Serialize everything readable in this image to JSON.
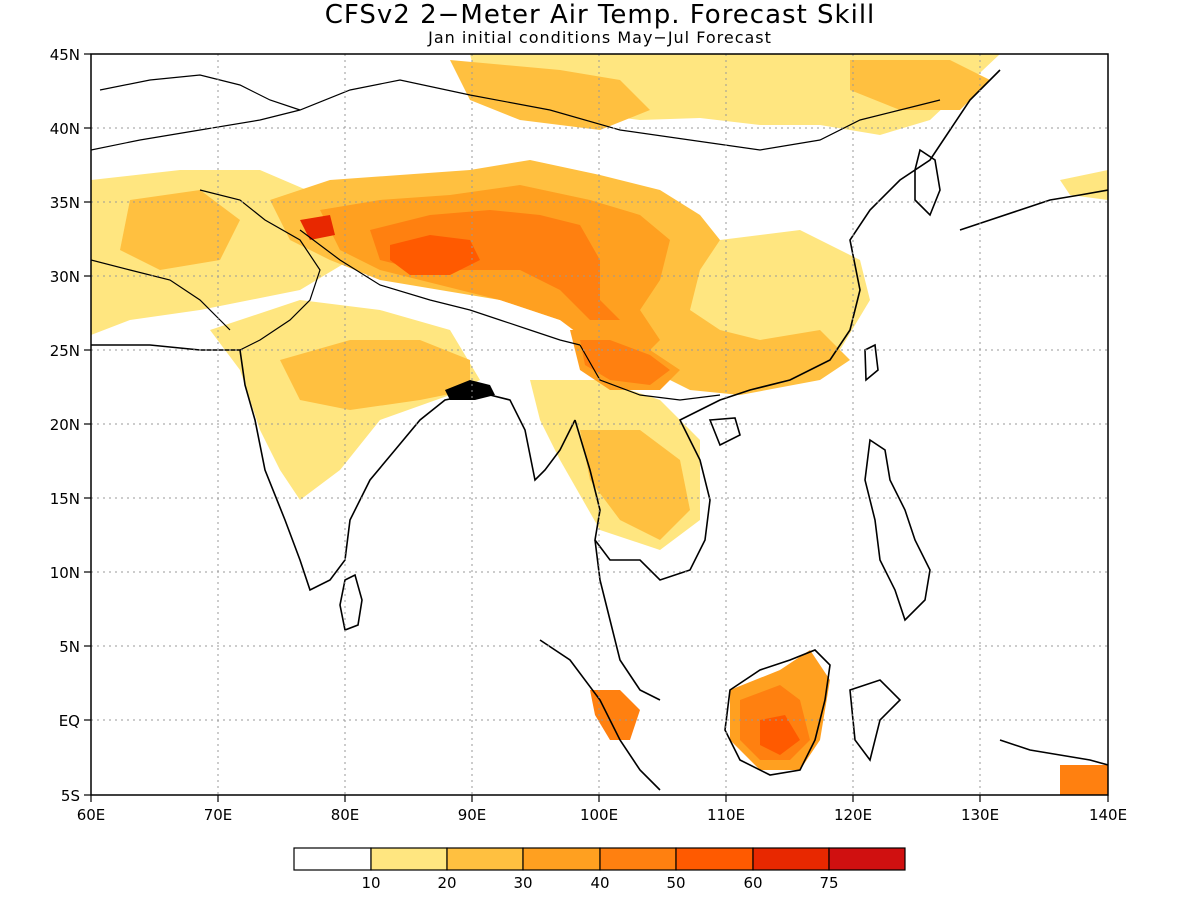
{
  "title": "CFSv2 2−Meter Air Temp. Forecast Skill",
  "subtitle": "Jan initial conditions   May−Jul Forecast",
  "map": {
    "lat_labels": [
      "45N",
      "40N",
      "35N",
      "30N",
      "25N",
      "20N",
      "15N",
      "10N",
      "5N",
      "EQ",
      "5S"
    ],
    "lon_labels": [
      "60E",
      "70E",
      "80E",
      "90E",
      "100E",
      "110E",
      "120E",
      "130E",
      "140E"
    ],
    "lat_range": [
      -5,
      45
    ],
    "lon_range": [
      60,
      140
    ],
    "grid": "dotted"
  },
  "colorbar": {
    "colors": [
      "#ffffff",
      "#ffe680",
      "#ffc040",
      "#ffa020",
      "#ff8010",
      "#ff5a00",
      "#e82800",
      "#d01010",
      "#a00000"
    ],
    "labels": [
      "10",
      "20",
      "30",
      "40",
      "50",
      "60",
      "75"
    ]
  }
}
